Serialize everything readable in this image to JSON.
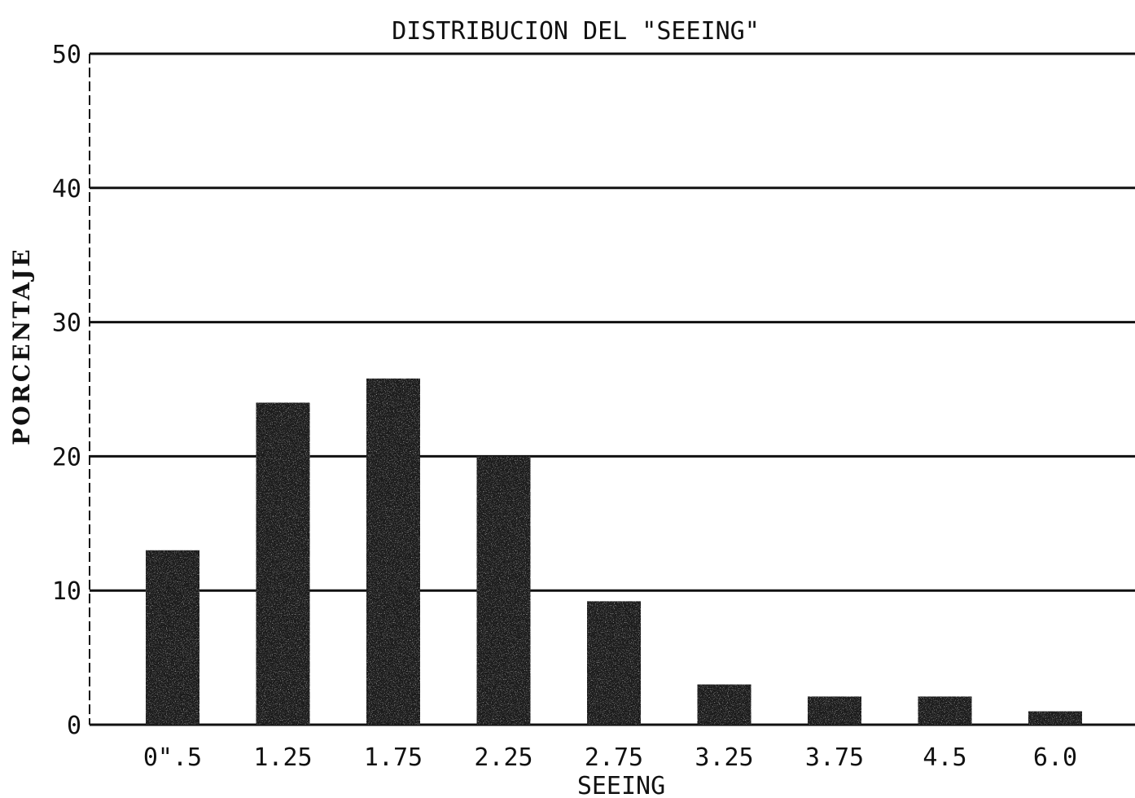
{
  "chart_data": {
    "type": "bar",
    "title": "DISTRIBUCION DEL \"SEEING\"",
    "xlabel": "SEEING",
    "ylabel": "PORCENTAJE",
    "categories": [
      "0\".5",
      "1.25",
      "1.75",
      "2.25",
      "2.75",
      "3.25",
      "3.75",
      "4.5",
      "6.0"
    ],
    "values": [
      13,
      24,
      25.8,
      20,
      9.2,
      3,
      2.1,
      2.1,
      1
    ],
    "ylim": [
      0,
      50
    ],
    "yticks": [
      "0",
      "10",
      "20",
      "30",
      "40",
      "50"
    ],
    "grid": true,
    "bar_color": "#1a1a1a"
  }
}
